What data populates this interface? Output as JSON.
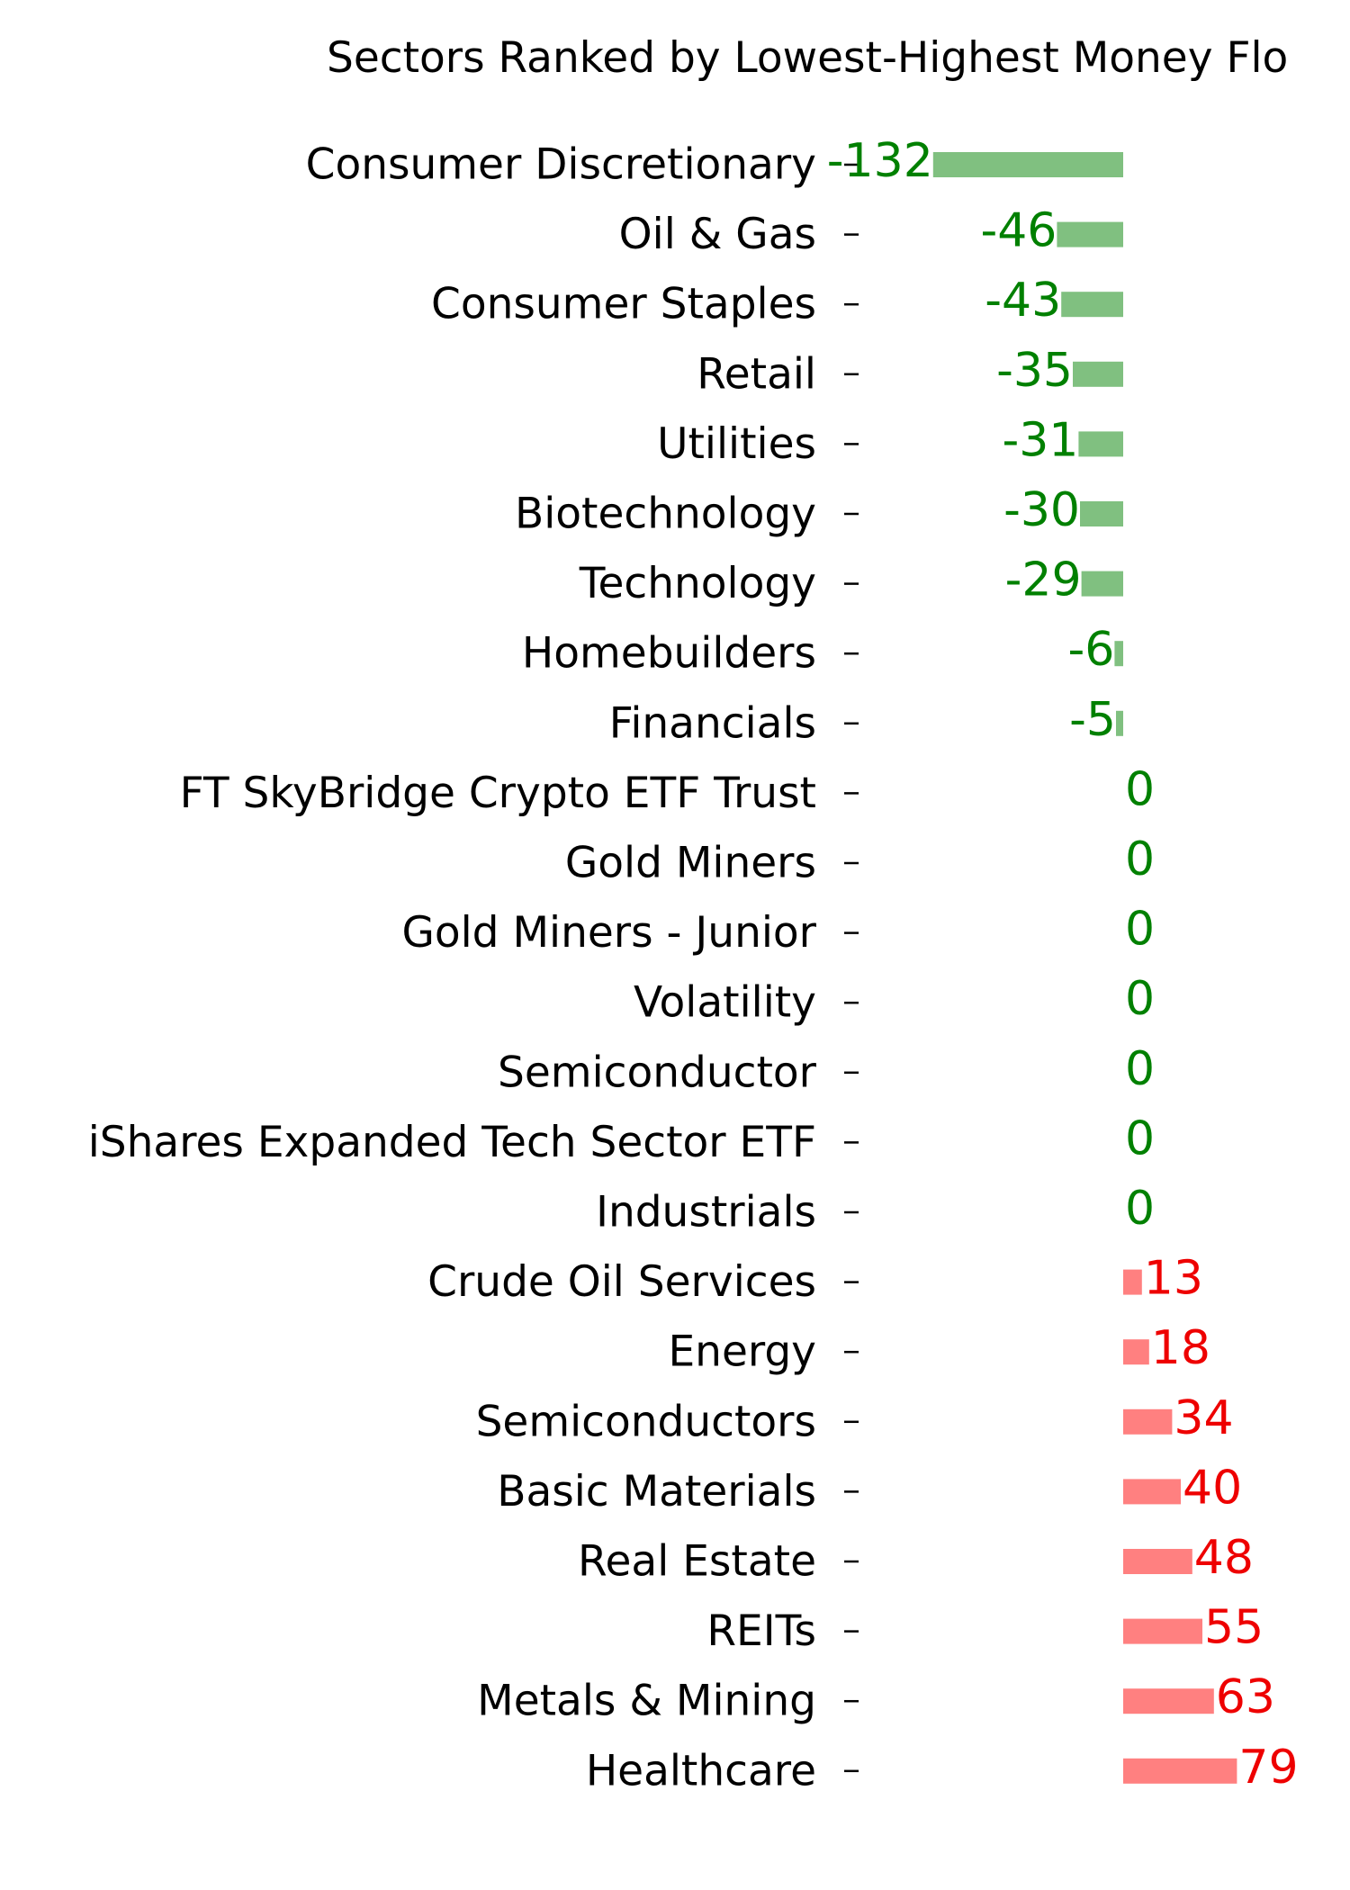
{
  "chart_data": {
    "type": "bar",
    "orientation": "horizontal",
    "title": "Sectors Ranked by Lowest-Highest Money Flo",
    "xlabel": "",
    "ylabel": "",
    "grid": false,
    "axes_visible": false,
    "categories": [
      "Consumer Discretionary",
      "Oil & Gas",
      "Consumer Staples",
      "Retail",
      "Utilities",
      "Biotechnology",
      "Technology",
      "Homebuilders",
      "Financials",
      "FT SkyBridge Crypto ETF Trust",
      "Gold Miners",
      "Gold Miners - Junior",
      "Volatility",
      "Semiconductor",
      "iShares Expanded Tech Sector ETF",
      "Industrials",
      "Crude Oil Services",
      "Energy",
      "Semiconductors",
      "Basic Materials",
      "Real Estate",
      "REITs",
      "Metals & Mining",
      "Healthcare"
    ],
    "values": [
      -132,
      -46,
      -43,
      -35,
      -31,
      -30,
      -29,
      -6,
      -5,
      0,
      0,
      0,
      0,
      0,
      0,
      0,
      13,
      18,
      34,
      40,
      48,
      55,
      63,
      79
    ],
    "value_labels": [
      "-132",
      "-46",
      "-43",
      "-35",
      "-31",
      "-30",
      "-29",
      "-6",
      "-5",
      "0",
      "0",
      "0",
      "0",
      "0",
      "0",
      "0",
      "13",
      "18",
      "34",
      "40",
      "48",
      "55",
      "63",
      "79"
    ],
    "colors": {
      "negative_bar": "#80c080",
      "negative_label": "#008000",
      "positive_bar": "#ff8080",
      "positive_label": "#ee0000",
      "tick_mark": "#000000",
      "category_text": "#000000",
      "title_text": "#000000"
    }
  }
}
